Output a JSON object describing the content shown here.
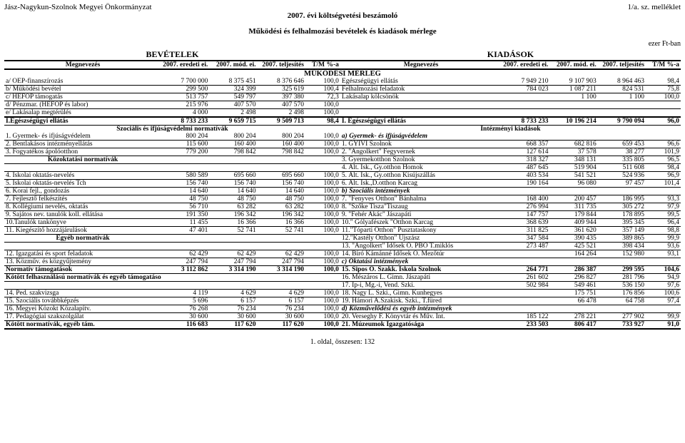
{
  "header": {
    "org": "Jász-Nagykun-Szolnok Megyei Önkormányzat",
    "title": "2007. évi költségvetési beszámoló",
    "annex": "1/a. sz. melléklet"
  },
  "subtitle": "Működési és felhalmozási bevételek és kiadások mérlege",
  "unit": "ezer Ft-ban",
  "bigheads": {
    "left": "BEVÉTELEK",
    "right": "KIADÁSOK"
  },
  "colhead": {
    "meg": "Megnevezés",
    "c1": "2007. eredeti ei.",
    "c2": "2007. mód. ei.",
    "c3": "2007. teljesítés",
    "c4": "T/M %-a"
  },
  "section1": "MŰKÖDÉSI MÉRLEG",
  "rows1": [
    {
      "l": "a/ OEP-finanszírozás",
      "a": "7 700 000",
      "b": "8 375 451",
      "c": "8 376 646",
      "d": "100,0",
      "r": "Egészségügyi ellátás",
      "e": "7 949 210",
      "f": "9 107 903",
      "g": "8 964 463",
      "h": "98,4"
    },
    {
      "l": "b/ Működési bevétel",
      "a": "299 500",
      "b": "324 399",
      "c": "325 619",
      "d": "100,4",
      "r": "Felhalmozási feladatok",
      "e": "784 023",
      "f": "1 087 211",
      "g": "824 531",
      "h": "75,8"
    },
    {
      "l": "c/ HEFOP támogatás",
      "a": "513 757",
      "b": "549 797",
      "c": "397 380",
      "d": "72,3",
      "r": "Lakásalap kölcsönök",
      "e": "",
      "f": "1 100",
      "g": "1 100",
      "h": "100,0"
    },
    {
      "l": "d/ Pénzmar. (HEFOP és labor)",
      "a": "215 976",
      "b": "407 570",
      "c": "407 570",
      "d": "100,0",
      "r": "",
      "e": "",
      "f": "",
      "g": "",
      "h": ""
    },
    {
      "l": "e/ Lakásalap megtérülés",
      "a": "4 000",
      "b": "2 498",
      "c": "2 498",
      "d": "100,0",
      "r": "",
      "e": "",
      "f": "",
      "g": "",
      "h": "",
      "thick": true
    },
    {
      "l": "I.Egészségügyi ellátás",
      "a": "8 733 233",
      "b": "9 659 715",
      "c": "9 509 713",
      "d": "98,4",
      "r": "I. Egészségügyi ellátás",
      "e": "8 733 233",
      "f": "10 196 214",
      "g": "9 790 094",
      "h": "96,0",
      "bold": true
    }
  ],
  "subhead1": {
    "left": "Szociális és ifjúságvédelmi normatívák",
    "right": "Intézményi kiadások"
  },
  "rows2": [
    {
      "l": "1. Gyermek- és ifjúságvédelem",
      "a": "800 204",
      "b": "800 204",
      "c": "800 204",
      "d": "100,0",
      "r": "a) Gyermek- és ifjúságvédelem",
      "e": "",
      "f": "",
      "g": "",
      "h": "",
      "ri": true
    },
    {
      "l": "2. Bentlakásos intézményellátás",
      "a": "115 600",
      "b": "160 400",
      "c": "160 400",
      "d": "100,0",
      "r": "1. GYIVI Szolnok",
      "e": "668 357",
      "f": "682 816",
      "g": "659 453",
      "h": "96,6"
    },
    {
      "l": "3. Fogyatékos ápolóotthon",
      "a": "779 200",
      "b": "798 842",
      "c": "798 842",
      "d": "100,0",
      "r": "2. \"Angolkert\" Fegyvernek",
      "e": "127 614",
      "f": "37 578",
      "g": "38 277",
      "h": "101,9"
    },
    {
      "l": "",
      "a": "",
      "b": "",
      "c": "",
      "d": "",
      "r": "3. Gyermekotthon Szolnok",
      "e": "318 327",
      "f": "348 131",
      "g": "335 805",
      "h": "96,5",
      "subleft": "Közoktatási normatívák"
    },
    {
      "l": "",
      "a": "",
      "b": "",
      "c": "",
      "d": "",
      "r": "4. Ált. Isk., Gy.otthon Homok",
      "e": "487 645",
      "f": "519 904",
      "g": "511 608",
      "h": "98,4"
    },
    {
      "l": "4. Iskolai oktatás-nevelés",
      "a": "580 589",
      "b": "695 660",
      "c": "695 660",
      "d": "100,0",
      "r": "5. Ált. Isk., Gy.otthon Kisújszállás",
      "e": "403 534",
      "f": "541 521",
      "g": "524 936",
      "h": "96,9"
    },
    {
      "l": "5. Iskolai oktatás-nevelés Tch",
      "a": "156 740",
      "b": "156 740",
      "c": "156 740",
      "d": "100,0",
      "r": "6. Ált. Isk.,D.otthon Karcag",
      "e": "190 164",
      "f": "96 080",
      "g": "97 457",
      "h": "101,4"
    },
    {
      "l": "6. Korai fejl., gondozás",
      "a": "14 640",
      "b": "14 640",
      "c": "14 640",
      "d": "100,0",
      "r": "b) Szociális intézmények",
      "e": "",
      "f": "",
      "g": "",
      "h": "",
      "ri": true
    },
    {
      "l": "7. Fejlesztő felkészítés",
      "a": "48 750",
      "b": "48 750",
      "c": "48 750",
      "d": "100,0",
      "r": "7. \"Fenyves Otthon\" Bánhalma",
      "e": "168 400",
      "f": "200 457",
      "g": "186 995",
      "h": "93,3"
    },
    {
      "l": "8. Kollégiumi nevelés, oktatás",
      "a": "56 710",
      "b": "63 282",
      "c": "63 282",
      "d": "100,0",
      "r": "8. \"Szőke Tisza\"Tiszaug",
      "e": "276 994",
      "f": "311 735",
      "g": "305 272",
      "h": "97,9"
    },
    {
      "l": "9. Sajátos nev. tanulók koll. ellátása",
      "a": "191 350",
      "b": "196 342",
      "c": "196 342",
      "d": "100,0",
      "r": "9. \"Fehér Akác\" Jászapáti",
      "e": "147 757",
      "f": "179 844",
      "g": "178 895",
      "h": "99,5"
    },
    {
      "l": "10.Tanulók tankönyve",
      "a": "11 455",
      "b": "16 366",
      "c": "16 366",
      "d": "100,0",
      "r": "10.\" Gólyafészek \"Otthon Karcag",
      "e": "368 639",
      "f": "409 944",
      "g": "395 345",
      "h": "96,4"
    },
    {
      "l": "11. Kiegészítő hozzájárulások",
      "a": "47 401",
      "b": "52 741",
      "c": "52 741",
      "d": "100,0",
      "r": "11.\"Tóparti Otthon\" Pusztataskony",
      "e": "311 825",
      "f": "361 620",
      "g": "357 149",
      "h": "98,8"
    },
    {
      "l": "",
      "a": "",
      "b": "",
      "c": "",
      "d": "",
      "r": "12.\"Kastély Otthon\" Újszász",
      "e": "347 584",
      "f": "390 435",
      "g": "389 865",
      "h": "99,9",
      "subleft": "Egyéb normatívák"
    },
    {
      "l": "",
      "a": "",
      "b": "",
      "c": "",
      "d": "",
      "r": "13. \"Angolkert\" Idősek O. PBO T.miklós",
      "e": "273 487",
      "f": "425 521",
      "g": "398 434",
      "h": "93,6"
    },
    {
      "l": "12. Igazgatási és sport feladatok",
      "a": "62 429",
      "b": "62 429",
      "c": "62 429",
      "d": "100,0",
      "r": "14. Bíró Kámánné Idősek O. Mezőtúr",
      "e": "",
      "f": "164 264",
      "g": "152 980",
      "h": "93,1"
    },
    {
      "l": "13. Közműv. és közgyűjtemény",
      "a": "247 794",
      "b": "247 794",
      "c": "247 794",
      "d": "100,0",
      "r": "c) Oktatási intézmények",
      "e": "",
      "f": "",
      "g": "",
      "h": "",
      "ri": true
    },
    {
      "l": "Normatív támogatások",
      "a": "3 112 862",
      "b": "3 314 190",
      "c": "3 314 190",
      "d": "100,0",
      "r": "15. Sipos O. Szakk. Iskola Szolnok",
      "e": "264 771",
      "f": "286 387",
      "g": "299 595",
      "h": "104,6",
      "bold": true
    },
    {
      "l": "",
      "a": "",
      "b": "",
      "c": "",
      "d": "",
      "r": "16. Mészáros L. Gimn. Jászapáti",
      "e": "261 602",
      "f": "296 827",
      "g": "281 796",
      "h": "94,9",
      "subleft": "Kötött felhasználású normatívák és egyéb támogatások"
    },
    {
      "l": "",
      "a": "",
      "b": "",
      "c": "",
      "d": "",
      "r": "17. Ip-i, Mg.-i, Vend. Szki.",
      "e": "502 984",
      "f": "549 461",
      "g": "536 150",
      "h": "97,6"
    },
    {
      "l": "14. Ped. szakvizsga",
      "a": "4 119",
      "b": "4 629",
      "c": "4 629",
      "d": "100,0",
      "r": "18. Nagy L. Szki., Gimn. Kunhegyes",
      "e": "",
      "f": "175 751",
      "g": "176 856",
      "h": "100,6"
    },
    {
      "l": "15. Szociális továbbképzés",
      "a": "5 696",
      "b": "6 157",
      "c": "6 157",
      "d": "100,0",
      "r": "19. Hámori A.Szakisk. Szki., T.füred",
      "e": "",
      "f": "66 478",
      "g": "64 758",
      "h": "97,4"
    },
    {
      "l": "16. Megyei Közokt Közalapítv.",
      "a": "76 268",
      "b": "76 234",
      "c": "76 234",
      "d": "100,0",
      "r": "d) Közművelődési és egyéb intézmények",
      "e": "",
      "f": "",
      "g": "",
      "h": "",
      "ri": true
    },
    {
      "l": "17. Pedagógiai szakszolgálat",
      "a": "30 600",
      "b": "30 600",
      "c": "30 600",
      "d": "100,0",
      "r": "20. Verseghy F. Könyvtár és Műv. Int.",
      "e": "185 122",
      "f": "278 221",
      "g": "277 902",
      "h": "99,9"
    },
    {
      "l": "Kötött normatívák, egyéb tám.",
      "a": "116 683",
      "b": "117 620",
      "c": "117 620",
      "d": "100,0",
      "r": "21. Múzeumok Igazgatósága",
      "e": "233 503",
      "f": "806 417",
      "g": "733 927",
      "h": "91,0",
      "bold": true,
      "thick": true
    }
  ],
  "footer": "1. oldal, összesen: 132",
  "colors": {
    "border": "#000000",
    "bg": "#ffffff",
    "text": "#000000"
  }
}
